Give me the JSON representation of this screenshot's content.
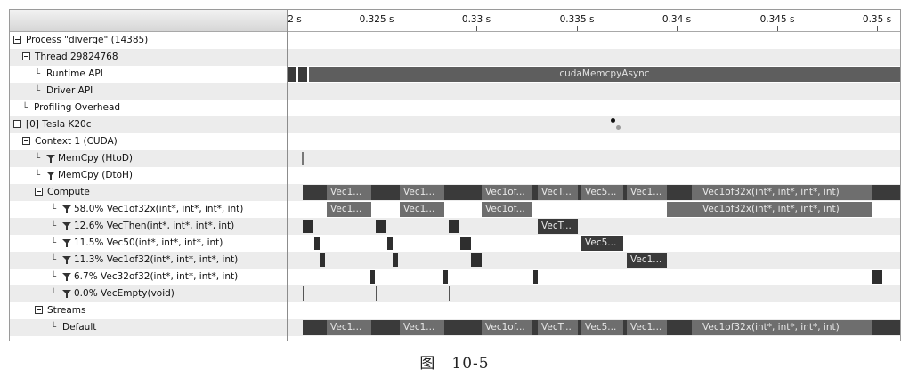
{
  "timeline": {
    "ruler_ticks": [
      "2 s",
      "0.325 s",
      "0.33 s",
      "0.335 s",
      "0.34 s",
      "0.345 s",
      "0.35 s"
    ]
  },
  "tree": {
    "rows": [
      {
        "label": "Process \"diverge\" (14385)",
        "kind": "expander"
      },
      {
        "label": "Thread 29824768",
        "kind": "expander"
      },
      {
        "label": "Runtime API",
        "kind": "leaf"
      },
      {
        "label": "Driver API",
        "kind": "leaf"
      },
      {
        "label": "Profiling Overhead",
        "kind": "leaf"
      },
      {
        "label": "[0] Tesla K20c",
        "kind": "expander"
      },
      {
        "label": "Context 1 (CUDA)",
        "kind": "expander"
      },
      {
        "label": "MemCpy (HtoD)",
        "kind": "filter"
      },
      {
        "label": "MemCpy (DtoH)",
        "kind": "filter"
      },
      {
        "label": "Compute",
        "kind": "expander"
      },
      {
        "label": "58.0% Vec1of32x(int*, int*, int*, int)",
        "kind": "filter"
      },
      {
        "label": "12.6% VecThen(int*, int*, int*, int)",
        "kind": "filter"
      },
      {
        "label": "11.5% Vec50(int*, int*, int*, int)",
        "kind": "filter"
      },
      {
        "label": "11.3% Vec1of32(int*, int*, int*, int)",
        "kind": "filter"
      },
      {
        "label": "6.7% Vec32of32(int*, int*, int*, int)",
        "kind": "filter"
      },
      {
        "label": "0.0% VecEmpty(void)",
        "kind": "filter"
      },
      {
        "label": "Streams",
        "kind": "expander"
      },
      {
        "label": "Default",
        "kind": "leaf"
      }
    ]
  },
  "lanes": {
    "runtime_label": "cudaMemcpyAsync",
    "compute_labels": [
      "Vec1...",
      "Vec1...",
      "Vec1of...",
      "VecT...",
      "Vec5...",
      "Vec1...",
      "Vec1of32x(int*, int*, int*, int)"
    ],
    "vec1of32x_labels": [
      "Vec1...",
      "Vec1...",
      "Vec1of...",
      "Vec1of32x(int*, int*, int*, int)"
    ],
    "vecthen_label": "VecT...",
    "vec50_label": "Vec5...",
    "vec1of32_label": "Vec1...",
    "default_labels": [
      "Vec1...",
      "Vec1...",
      "Vec1of...",
      "VecT...",
      "Vec5...",
      "Vec1...",
      "Vec1of32x(int*, int*, int*, int)"
    ]
  },
  "caption": "图　10-5"
}
